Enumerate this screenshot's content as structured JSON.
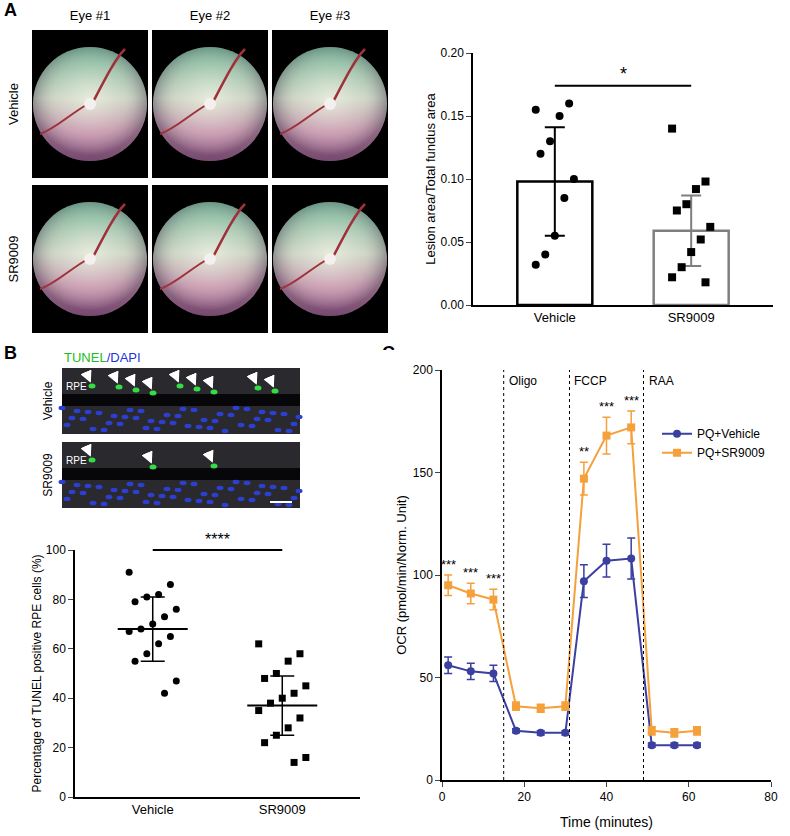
{
  "chart_data": [
    {
      "type": "bar",
      "categories": [
        "Vehicle",
        "SR9009"
      ],
      "values": [
        0.098,
        0.059
      ],
      "error": [
        0.043,
        0.028
      ],
      "colors": [
        "#000000",
        "#7f7f7f"
      ],
      "points": [
        {
          "marker": "circle",
          "color": "#000000",
          "values": [
            0.155,
            0.16,
            0.15,
            0.13,
            0.12,
            0.1,
            0.085,
            0.055,
            0.04,
            0.032
          ]
        },
        {
          "marker": "square",
          "color": "#000000",
          "values": [
            0.14,
            0.098,
            0.092,
            0.08,
            0.075,
            0.062,
            0.052,
            0.042,
            0.03,
            0.022,
            0.018
          ]
        }
      ],
      "ylabel": "Lesion area/Total fundus area",
      "ylim": [
        0,
        0.2
      ],
      "yticks": [
        {
          "value": 0,
          "label": "0.00"
        },
        {
          "value": 0.05,
          "label": "0.05"
        },
        {
          "value": 0.1,
          "label": "0.10"
        },
        {
          "value": 0.15,
          "label": "0.15"
        },
        {
          "value": 0.2,
          "label": "0.20"
        }
      ],
      "significance": "*",
      "grid": false
    },
    {
      "type": "scatter",
      "categories": [
        "Vehicle",
        "SR9009"
      ],
      "values": [
        68,
        37
      ],
      "error": [
        13,
        12
      ],
      "points": [
        {
          "marker": "circle",
          "color": "#000000",
          "values": [
            91,
            86,
            82,
            81,
            79,
            76,
            73,
            70,
            68,
            67,
            65,
            62,
            58,
            55,
            47,
            42
          ]
        },
        {
          "marker": "square",
          "color": "#000000",
          "values": [
            62,
            58,
            55,
            50,
            48,
            45,
            42,
            40,
            38,
            35,
            32,
            28,
            25,
            22,
            16,
            14
          ]
        }
      ],
      "ylabel": "Percentage of TUNEL positive RPE cells (%)",
      "ylim": [
        0,
        100
      ],
      "yticks": [
        0,
        20,
        40,
        60,
        80,
        100
      ],
      "significance": "****",
      "grid": false
    },
    {
      "type": "line",
      "x": [
        1.5,
        7,
        12.5,
        18,
        24,
        30,
        34.5,
        40,
        46,
        51,
        56.5,
        62
      ],
      "series": [
        {
          "name": "PQ+Vehicle",
          "color": "#3b3f9f",
          "marker": "circle",
          "values": [
            56,
            53,
            52,
            24,
            23,
            23,
            97,
            107,
            108,
            17,
            17,
            17
          ],
          "error": [
            4,
            4,
            4,
            1,
            1,
            1,
            8,
            8,
            10,
            1,
            1,
            1
          ]
        },
        {
          "name": "PQ+SR9009",
          "color": "#f5a03a",
          "marker": "square",
          "values": [
            95,
            91,
            88,
            36,
            35,
            36,
            147,
            168,
            172,
            24,
            23,
            24
          ],
          "error": [
            5,
            5,
            5,
            2,
            2,
            2,
            8,
            9,
            8,
            2,
            2,
            2
          ]
        }
      ],
      "significance": [
        "***",
        "***",
        "***",
        null,
        null,
        null,
        "**",
        "***",
        "***",
        null,
        null,
        null
      ],
      "injections": [
        {
          "x": 15,
          "label": "Oligo"
        },
        {
          "x": 31,
          "label": "FCCP"
        },
        {
          "x": 49,
          "label": "RAA"
        }
      ],
      "xlabel": "Time (minutes)",
      "ylabel": "OCR (pmol/min/Norm. Unit)",
      "xlim": [
        0,
        80
      ],
      "xticks": [
        0,
        20,
        40,
        60,
        80
      ],
      "ylim": [
        0,
        200
      ],
      "yticks": [
        0,
        50,
        100,
        150,
        200
      ],
      "legend": "upper right",
      "grid": false
    }
  ],
  "figure": {
    "panel_labels": [
      "A",
      "B",
      "C"
    ],
    "fundus": {
      "columns": [
        "Eye #1",
        "Eye #2",
        "Eye #3"
      ],
      "rows": [
        "Vehicle",
        "SR9009"
      ]
    },
    "tunel": {
      "title_parts": [
        {
          "text": "TUNEL",
          "color": "#22bb22"
        },
        {
          "text": "/DAPI",
          "color": "#2233dd"
        }
      ],
      "rows": [
        "Vehicle",
        "SR9009"
      ],
      "layer_label": "RPE"
    }
  }
}
